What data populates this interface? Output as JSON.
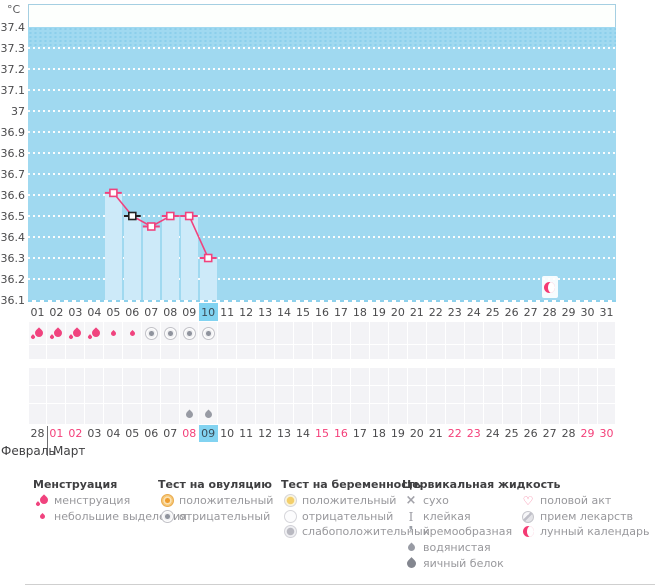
{
  "axis": {
    "unit": "°C"
  },
  "chart_data": {
    "type": "line",
    "unit": "°C",
    "y_ticks": [
      "37.4",
      "37.3",
      "37.2",
      "37.1",
      "37",
      "36.9",
      "36.8",
      "36.7",
      "36.6",
      "36.5",
      "36.4",
      "36.3",
      "36.2",
      "36.1"
    ],
    "ylim": [
      36.1,
      37.4
    ],
    "x_categories": [
      "01",
      "02",
      "03",
      "04",
      "05",
      "06",
      "07",
      "08",
      "09",
      "10",
      "11",
      "12",
      "13",
      "14",
      "15",
      "16",
      "17",
      "18",
      "19",
      "20",
      "21",
      "22",
      "23",
      "24",
      "25",
      "26",
      "27",
      "28",
      "29",
      "30",
      "31"
    ],
    "grid": "dotted-white",
    "series": [
      {
        "points": [
          {
            "day": 5,
            "value": 36.61
          },
          {
            "day": 6,
            "value": 36.5,
            "marker_color": "black"
          },
          {
            "day": 7,
            "value": 36.45
          },
          {
            "day": 8,
            "value": 36.5
          },
          {
            "day": 9,
            "value": 36.5
          },
          {
            "day": 10,
            "value": 36.3
          }
        ]
      }
    ],
    "bars_under_points": true,
    "current_cycle_day": "10",
    "moon_marker": {
      "cycle_day": 28,
      "type": "lunar-calendar"
    }
  },
  "day_row": {
    "labels": [
      "01",
      "02",
      "03",
      "04",
      "05",
      "06",
      "07",
      "08",
      "09",
      "10",
      "11",
      "12",
      "13",
      "14",
      "15",
      "16",
      "17",
      "18",
      "19",
      "20",
      "21",
      "22",
      "23",
      "24",
      "25",
      "26",
      "27",
      "28",
      "29",
      "30",
      "31"
    ],
    "highlight": "10"
  },
  "marks": {
    "menstruation": [
      {
        "day": 1,
        "intensity": "heavy"
      },
      {
        "day": 2,
        "intensity": "heavy"
      },
      {
        "day": 3,
        "intensity": "heavy"
      },
      {
        "day": 4,
        "intensity": "heavy"
      },
      {
        "day": 5,
        "intensity": "light"
      },
      {
        "day": 6,
        "intensity": "light"
      }
    ],
    "ovulation_tests": [
      {
        "day": 7,
        "result": "negative"
      },
      {
        "day": 8,
        "result": "negative"
      },
      {
        "day": 9,
        "result": "negative"
      },
      {
        "day": 10,
        "result": "negative"
      }
    ],
    "cervical_fluid": [
      {
        "day": 9,
        "type": "watery"
      },
      {
        "day": 10,
        "type": "watery"
      }
    ]
  },
  "dates_row": {
    "values": [
      "28",
      "01",
      "02",
      "03",
      "04",
      "05",
      "06",
      "07",
      "08",
      "09",
      "10",
      "11",
      "12",
      "13",
      "14",
      "15",
      "16",
      "17",
      "18",
      "19",
      "20",
      "21",
      "22",
      "23",
      "24",
      "25",
      "26",
      "27",
      "28",
      "29",
      "30"
    ],
    "weekend_dates": [
      "01",
      "02",
      "08",
      "15",
      "16",
      "22",
      "23",
      "29",
      "30"
    ],
    "highlight": "09"
  },
  "months": {
    "left": "Февраль",
    "right": "Март"
  },
  "legend": {
    "groups": [
      {
        "title": "Менструация",
        "items": [
          {
            "icon": "menstruation-heavy",
            "label": "менструация"
          },
          {
            "icon": "menstruation-light",
            "label": "небольшие выделения"
          }
        ]
      },
      {
        "title": "Тест на овуляцию",
        "items": [
          {
            "icon": "opk-positive",
            "label": "положительный"
          },
          {
            "icon": "opk-negative",
            "label": "отрицательный"
          }
        ]
      },
      {
        "title": "Тест на беременность",
        "items": [
          {
            "icon": "hpt-positive",
            "label": "положительный"
          },
          {
            "icon": "hpt-negative",
            "label": "отрицательный"
          },
          {
            "icon": "hpt-weak",
            "label": "слабоположительный"
          }
        ]
      },
      {
        "title": "Цервикальная жидкость",
        "items": [
          {
            "icon": "cf-dry",
            "label": "сухо"
          },
          {
            "icon": "cf-sticky",
            "label": "клейкая"
          },
          {
            "icon": "cf-creamy",
            "label": "кремообразная"
          },
          {
            "icon": "cf-watery",
            "label": "водянистая"
          },
          {
            "icon": "cf-eggwhite",
            "label": "яичный белок"
          }
        ]
      },
      {
        "title": "",
        "items": [
          {
            "icon": "intercourse",
            "label": "половой акт"
          },
          {
            "icon": "medication",
            "label": "прием лекарств"
          },
          {
            "icon": "lunar-calendar",
            "label": "лунный календарь"
          }
        ]
      }
    ]
  },
  "colors": {
    "chart_blue": "#a0d9f0",
    "bar_blue": "#cdeaf9",
    "highlight_blue": "#82d3f1",
    "pink": "#f0437e",
    "black_marker": "#222222",
    "weekend_pink": "#f4407a",
    "cell_gray": "#f3f3f6"
  }
}
